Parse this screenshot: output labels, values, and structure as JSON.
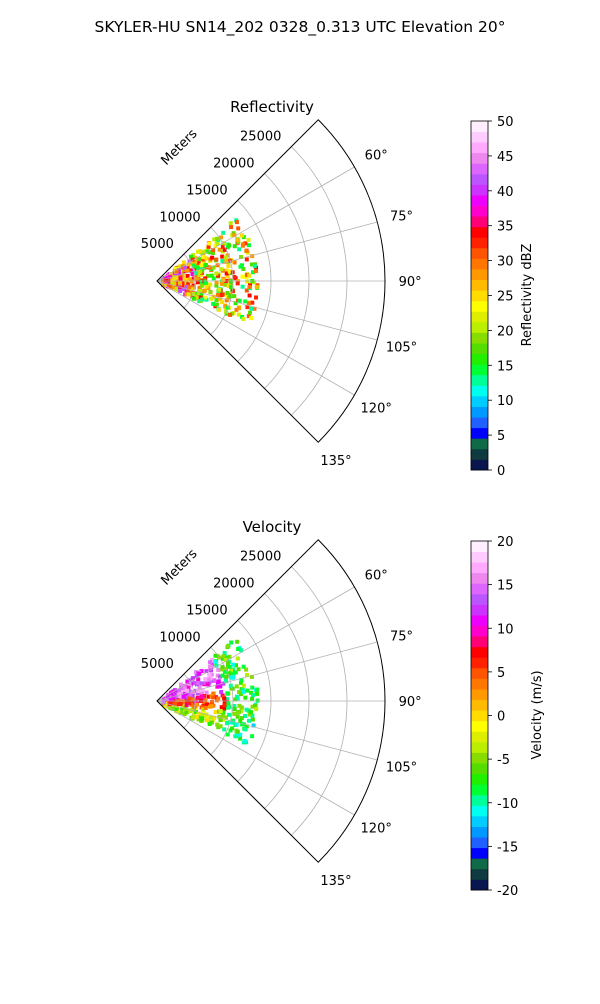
{
  "figure": {
    "title": "SKYLER-HU  SN14_202  0328_0.313 UTC Elevation 20°"
  },
  "chart_data": [
    {
      "type": "heatmap",
      "title": "Reflectivity",
      "radial_label": "Meters",
      "radial_ticks": [
        5000,
        10000,
        15000,
        20000,
        25000
      ],
      "radial_tick_labels": [
        "5000",
        "10000",
        "15000",
        "20000",
        "25000"
      ],
      "range_lim": [
        0,
        30000
      ],
      "azimuth_ticks": [
        60,
        75,
        90,
        105,
        120,
        135
      ],
      "azimuth_tick_labels": [
        "60°",
        "75°",
        "90°",
        "105°",
        "120°",
        "135°"
      ],
      "azimuth_range": [
        45,
        135
      ],
      "grid": true,
      "colorbar": {
        "label": "Reflectivity dBZ",
        "range": [
          0,
          50
        ],
        "ticks": [
          "0",
          "5",
          "10",
          "15",
          "20",
          "25",
          "30",
          "35",
          "40",
          "45",
          "50"
        ],
        "colors": [
          "#0a1650",
          "#0f3a40",
          "#0f6a48",
          "#0000ff",
          "#2060ff",
          "#0099ff",
          "#00ccff",
          "#00ffee",
          "#00ff99",
          "#00ff33",
          "#22ee00",
          "#55dd00",
          "#88dd00",
          "#bbee00",
          "#ddee00",
          "#ffff00",
          "#ffdd00",
          "#ffbb00",
          "#ff9900",
          "#ff7700",
          "#ff5500",
          "#ff2200",
          "#ff0000",
          "#ff0077",
          "#ff00cc",
          "#ee00ff",
          "#cc33ff",
          "#bb55ff",
          "#dd66ff",
          "#ee88ee",
          "#ffaaff",
          "#ffccff",
          "#ffeeff"
        ]
      }
    },
    {
      "type": "heatmap",
      "title": "Velocity",
      "radial_label": "Meters",
      "radial_ticks": [
        5000,
        10000,
        15000,
        20000,
        25000
      ],
      "radial_tick_labels": [
        "5000",
        "10000",
        "15000",
        "20000",
        "25000"
      ],
      "range_lim": [
        0,
        30000
      ],
      "azimuth_ticks": [
        60,
        75,
        90,
        105,
        120,
        135
      ],
      "azimuth_tick_labels": [
        "60°",
        "75°",
        "90°",
        "105°",
        "120°",
        "135°"
      ],
      "azimuth_range": [
        45,
        135
      ],
      "grid": true,
      "colorbar": {
        "label": "Velocity (m/s)",
        "range": [
          -20,
          20
        ],
        "ticks": [
          "-20",
          "-15",
          "-10",
          "-5",
          "0",
          "5",
          "10",
          "15",
          "20"
        ],
        "colors": [
          "#0a1650",
          "#0f3a40",
          "#0f6a48",
          "#0000ff",
          "#2060ff",
          "#0099ff",
          "#00ccff",
          "#00ffee",
          "#00ff99",
          "#00ff33",
          "#22ee00",
          "#55dd00",
          "#88dd00",
          "#bbee00",
          "#ddee00",
          "#ffff00",
          "#ffdd00",
          "#ffbb00",
          "#ff9900",
          "#ff7700",
          "#ff5500",
          "#ff2200",
          "#ff0000",
          "#ff0077",
          "#ff00cc",
          "#ee00ff",
          "#cc33ff",
          "#bb55ff",
          "#dd66ff",
          "#ee88ee",
          "#ffaaff",
          "#ffccff",
          "#ffeeff"
        ]
      }
    }
  ]
}
